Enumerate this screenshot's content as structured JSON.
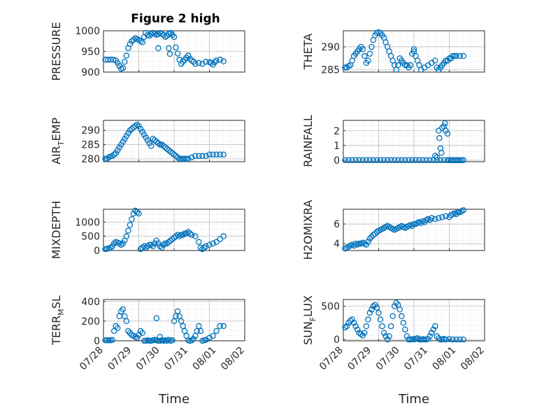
{
  "figure_title": "Figure 2 high",
  "colors": {
    "marker": "#0072BD",
    "axis": "#262626",
    "grid": "#d0d0d0"
  },
  "chart_data": [
    {
      "type": "scatter",
      "ylabel": "PRESSURE",
      "ylim": [
        900,
        1000
      ],
      "yticks": [
        900,
        950,
        1000
      ],
      "tick_labels": [
        "900",
        "950",
        "1000"
      ],
      "xlim": [
        0,
        4
      ],
      "xtick_labels": [],
      "x": [
        0.05,
        0.12,
        0.2,
        0.28,
        0.35,
        0.4,
        0.45,
        0.5,
        0.55,
        0.6,
        0.65,
        0.7,
        0.75,
        0.8,
        0.85,
        0.9,
        0.95,
        1.0,
        1.05,
        1.1,
        1.15,
        1.2,
        1.25,
        1.3,
        1.35,
        1.4,
        1.45,
        1.5,
        1.55,
        1.6,
        1.65,
        1.7,
        1.75,
        1.8,
        1.85,
        1.9,
        1.95,
        2.0,
        2.05,
        2.1,
        2.15,
        2.2,
        2.25,
        2.3,
        2.35,
        2.4,
        2.45,
        2.5,
        2.55,
        2.6,
        2.7,
        2.8,
        2.9,
        3.0,
        3.05,
        3.1,
        3.15,
        3.2,
        3.3,
        3.4,
        1.55,
        1.85,
        1.88,
        1.9
      ],
      "y": [
        930,
        930,
        930,
        930,
        928,
        922,
        915,
        908,
        910,
        925,
        940,
        958,
        968,
        975,
        978,
        982,
        980,
        978,
        975,
        972,
        985,
        995,
        990,
        988,
        992,
        995,
        993,
        990,
        992,
        995,
        993,
        990,
        985,
        988,
        993,
        995,
        990,
        985,
        960,
        945,
        930,
        920,
        925,
        930,
        935,
        940,
        932,
        928,
        925,
        920,
        922,
        920,
        925,
        924,
        922,
        918,
        924,
        928,
        930,
        926,
        958,
        958,
        944,
        994
      ]
    },
    {
      "type": "scatter",
      "ylabel": "THETA",
      "ylim": [
        284.5,
        293.5
      ],
      "yticks": [
        285,
        290
      ],
      "tick_labels": [
        "285",
        "290"
      ],
      "xlim": [
        0,
        4
      ],
      "xtick_labels": [],
      "x": [
        0.05,
        0.1,
        0.15,
        0.2,
        0.25,
        0.3,
        0.35,
        0.4,
        0.45,
        0.5,
        0.55,
        0.6,
        0.65,
        0.7,
        0.75,
        0.8,
        0.85,
        0.9,
        0.95,
        1.0,
        1.05,
        1.1,
        1.15,
        1.2,
        1.25,
        1.3,
        1.35,
        1.4,
        1.45,
        1.5,
        1.55,
        1.6,
        1.65,
        1.7,
        1.75,
        1.8,
        1.85,
        1.9,
        1.95,
        2.0,
        2.05,
        2.1,
        2.15,
        2.2,
        2.3,
        2.4,
        2.5,
        2.6,
        2.65,
        2.7,
        2.75,
        2.8,
        2.85,
        2.9,
        2.95,
        3.0,
        3.05,
        3.1,
        3.15,
        3.2,
        3.3,
        3.4,
        2.0
      ],
      "y": [
        285.5,
        285.5,
        285.8,
        286.0,
        287.0,
        288.0,
        288.5,
        289.0,
        289.5,
        290.0,
        289.5,
        288.0,
        286.5,
        287.0,
        288.5,
        290.0,
        291.5,
        292.5,
        293.0,
        293.2,
        293.0,
        292.5,
        292.0,
        291.0,
        290.0,
        289.0,
        288.0,
        287.0,
        286.0,
        285.0,
        286.0,
        287.5,
        287.0,
        286.5,
        286.0,
        286.0,
        285.5,
        286.0,
        288.5,
        289.0,
        288.0,
        287.0,
        286.0,
        285.0,
        285.5,
        286.0,
        286.5,
        287.0,
        285.5,
        285.0,
        285.5,
        286.0,
        286.5,
        287.0,
        287.0,
        287.5,
        287.5,
        288.0,
        288.0,
        288.0,
        288.0,
        288.0,
        289.5
      ]
    },
    {
      "type": "scatter",
      "ylabel": "AIR_TEMP",
      "ylim": [
        279,
        293.5
      ],
      "yticks": [
        280,
        285,
        290
      ],
      "tick_labels": [
        "280",
        "285",
        "290"
      ],
      "xlim": [
        0,
        4
      ],
      "xtick_labels": [],
      "x": [
        0.05,
        0.1,
        0.15,
        0.2,
        0.25,
        0.3,
        0.35,
        0.4,
        0.45,
        0.5,
        0.55,
        0.6,
        0.65,
        0.7,
        0.75,
        0.8,
        0.85,
        0.9,
        0.95,
        1.0,
        1.05,
        1.1,
        1.15,
        1.2,
        1.25,
        1.3,
        1.35,
        1.4,
        1.45,
        1.5,
        1.55,
        1.6,
        1.65,
        1.7,
        1.75,
        1.8,
        1.85,
        1.9,
        1.95,
        2.0,
        2.05,
        2.1,
        2.15,
        2.2,
        2.25,
        2.3,
        2.35,
        2.4,
        2.5,
        2.6,
        2.7,
        2.8,
        2.9,
        3.0,
        3.1,
        3.2,
        3.3,
        3.4
      ],
      "y": [
        280.0,
        280.0,
        280.5,
        280.8,
        281.0,
        281.5,
        282.0,
        283.0,
        284.0,
        285.0,
        286.0,
        287.0,
        288.0,
        289.0,
        290.0,
        290.5,
        291.0,
        291.5,
        292.0,
        291.5,
        290.5,
        289.5,
        288.5,
        287.5,
        286.5,
        285.5,
        284.5,
        287.0,
        286.5,
        286.0,
        285.5,
        285.0,
        285.0,
        284.5,
        284.0,
        283.5,
        283.0,
        282.5,
        282.0,
        281.5,
        281.0,
        280.5,
        280.0,
        280.0,
        280.0,
        280.0,
        280.0,
        280.0,
        280.5,
        281.0,
        281.0,
        281.0,
        281.0,
        281.5,
        281.5,
        281.5,
        281.5,
        281.5
      ]
    },
    {
      "type": "scatter",
      "ylabel": "RAINFALL",
      "ylim": [
        -0.1,
        2.7
      ],
      "yticks": [
        0,
        1,
        2
      ],
      "tick_labels": [
        "0",
        "1",
        "2"
      ],
      "xlim": [
        0,
        4
      ],
      "xtick_labels": [],
      "x": [
        0.05,
        0.15,
        0.25,
        0.35,
        0.45,
        0.55,
        0.65,
        0.75,
        0.85,
        0.95,
        1.05,
        1.15,
        1.25,
        1.35,
        1.45,
        1.55,
        1.65,
        1.75,
        1.85,
        1.95,
        2.05,
        2.15,
        2.25,
        2.35,
        2.45,
        2.55,
        2.65,
        2.75,
        2.85,
        2.95,
        3.0,
        3.05,
        3.1,
        3.15,
        3.2,
        3.25,
        3.3,
        3.35,
        3.4,
        2.6,
        2.65,
        2.7,
        2.72,
        2.75,
        2.78,
        2.8,
        2.85,
        2.88,
        2.9,
        2.95
      ],
      "y": [
        0,
        0,
        0,
        0,
        0,
        0,
        0,
        0,
        0,
        0,
        0,
        0,
        0,
        0,
        0,
        0,
        0,
        0,
        0,
        0,
        0,
        0,
        0,
        0,
        0,
        0,
        0,
        0,
        0,
        0,
        0,
        0,
        0,
        0,
        0,
        0,
        0,
        0,
        0,
        0.3,
        0.2,
        2.0,
        1.5,
        0.8,
        0.5,
        2.2,
        2.3,
        2.5,
        2.0,
        1.8
      ]
    },
    {
      "type": "scatter",
      "ylabel": "MIXDEPTH",
      "ylim": [
        0,
        1450
      ],
      "yticks": [
        0,
        500,
        1000
      ],
      "tick_labels": [
        "0",
        "500",
        "1000"
      ],
      "xlim": [
        0,
        4
      ],
      "xtick_labels": [],
      "x": [
        0.05,
        0.1,
        0.15,
        0.2,
        0.25,
        0.3,
        0.35,
        0.4,
        0.45,
        0.5,
        0.55,
        0.6,
        0.65,
        0.7,
        0.75,
        0.8,
        0.85,
        0.9,
        0.95,
        1.0,
        1.05,
        1.1,
        1.15,
        1.2,
        1.25,
        1.3,
        1.35,
        1.4,
        1.45,
        1.5,
        1.55,
        1.6,
        1.65,
        1.7,
        1.75,
        1.8,
        1.85,
        1.9,
        1.95,
        2.0,
        2.05,
        2.1,
        2.15,
        2.2,
        2.25,
        2.3,
        2.35,
        2.4,
        2.45,
        2.5,
        2.6,
        2.7,
        2.75,
        2.8,
        2.85,
        2.9,
        3.0,
        3.1,
        3.2,
        3.3,
        3.4
      ],
      "y": [
        50,
        60,
        80,
        100,
        150,
        250,
        300,
        280,
        250,
        200,
        250,
        350,
        500,
        700,
        900,
        1100,
        1300,
        1400,
        1350,
        1300,
        50,
        100,
        150,
        100,
        150,
        200,
        200,
        150,
        250,
        350,
        250,
        150,
        100,
        200,
        250,
        250,
        300,
        350,
        400,
        450,
        500,
        550,
        500,
        550,
        550,
        600,
        600,
        650,
        600,
        550,
        500,
        300,
        100,
        50,
        100,
        150,
        200,
        250,
        300,
        400,
        500
      ]
    },
    {
      "type": "scatter",
      "ylabel": "H2OMIXRA",
      "ylim": [
        3.3,
        7.5
      ],
      "yticks": [
        4,
        6
      ],
      "tick_labels": [
        "4",
        "6"
      ],
      "xlim": [
        0,
        4
      ],
      "xtick_labels": [],
      "x": [
        0.05,
        0.1,
        0.15,
        0.2,
        0.25,
        0.3,
        0.35,
        0.4,
        0.45,
        0.5,
        0.55,
        0.6,
        0.65,
        0.7,
        0.75,
        0.8,
        0.85,
        0.9,
        0.95,
        1.0,
        1.05,
        1.1,
        1.15,
        1.2,
        1.25,
        1.3,
        1.35,
        1.4,
        1.45,
        1.5,
        1.55,
        1.6,
        1.65,
        1.7,
        1.75,
        1.8,
        1.85,
        1.9,
        1.95,
        2.0,
        2.05,
        2.1,
        2.15,
        2.2,
        2.25,
        2.3,
        2.35,
        2.4,
        2.45,
        2.5,
        2.6,
        2.7,
        2.8,
        2.9,
        3.0,
        3.05,
        3.1,
        3.15,
        3.2,
        3.25,
        3.3,
        3.35,
        3.4
      ],
      "y": [
        3.5,
        3.6,
        3.7,
        3.8,
        3.9,
        3.8,
        4.0,
        3.9,
        4.0,
        4.0,
        4.1,
        4.0,
        3.9,
        4.2,
        4.5,
        4.7,
        4.9,
        5.0,
        5.2,
        5.3,
        5.4,
        5.5,
        5.6,
        5.7,
        5.8,
        5.7,
        5.6,
        5.5,
        5.4,
        5.5,
        5.6,
        5.7,
        5.8,
        5.7,
        5.6,
        5.7,
        5.8,
        5.9,
        5.8,
        6.0,
        6.0,
        6.1,
        6.2,
        6.1,
        6.3,
        6.2,
        6.4,
        6.5,
        6.4,
        6.6,
        6.5,
        6.6,
        6.7,
        6.8,
        6.7,
        6.9,
        7.0,
        7.1,
        7.0,
        7.2,
        7.2,
        7.3,
        7.4
      ]
    },
    {
      "type": "scatter",
      "ylabel": "TERR_MSL",
      "ylim": [
        0,
        420
      ],
      "yticks": [
        0,
        200,
        400
      ],
      "tick_labels": [
        "0",
        "200",
        "400"
      ],
      "xlim": [
        0,
        4
      ],
      "xtick_labels": [
        "07/28",
        "07/29",
        "07/30",
        "07/31",
        "08/01",
        "08/02"
      ],
      "x": [
        0.05,
        0.1,
        0.15,
        0.2,
        0.25,
        0.3,
        0.35,
        0.4,
        0.45,
        0.5,
        0.55,
        0.6,
        0.65,
        0.7,
        0.75,
        0.8,
        0.85,
        0.9,
        0.95,
        1.0,
        1.05,
        1.1,
        1.15,
        1.2,
        1.25,
        1.3,
        1.35,
        1.4,
        1.45,
        1.5,
        1.55,
        1.6,
        1.65,
        1.7,
        1.75,
        1.8,
        1.85,
        1.9,
        1.95,
        2.0,
        2.05,
        2.1,
        2.15,
        2.2,
        2.25,
        2.3,
        2.35,
        2.4,
        2.45,
        2.5,
        2.55,
        2.6,
        2.65,
        2.7,
        2.75,
        2.8,
        2.85,
        2.9,
        3.0,
        3.1,
        3.2,
        3.3,
        3.4,
        1.5,
        1.6
      ],
      "y": [
        5,
        5,
        5,
        5,
        10,
        100,
        150,
        130,
        250,
        300,
        320,
        250,
        200,
        100,
        80,
        60,
        50,
        40,
        30,
        60,
        100,
        80,
        0,
        0,
        5,
        0,
        0,
        5,
        10,
        5,
        0,
        0,
        5,
        0,
        5,
        0,
        10,
        0,
        5,
        200,
        250,
        300,
        250,
        200,
        150,
        100,
        50,
        5,
        0,
        5,
        20,
        50,
        100,
        150,
        100,
        0,
        5,
        10,
        30,
        50,
        100,
        150,
        150,
        230,
        40
      ]
    },
    {
      "type": "scatter",
      "ylabel": "SUN_FLUX",
      "ylim": [
        -20,
        600
      ],
      "yticks": [
        0,
        500
      ],
      "tick_labels": [
        "0",
        "500"
      ],
      "xlim": [
        0,
        4
      ],
      "xtick_labels": [
        "07/28",
        "07/29",
        "07/30",
        "07/31",
        "08/01",
        "08/02"
      ],
      "x": [
        0.05,
        0.1,
        0.15,
        0.2,
        0.25,
        0.3,
        0.35,
        0.4,
        0.45,
        0.5,
        0.55,
        0.6,
        0.65,
        0.7,
        0.75,
        0.8,
        0.85,
        0.9,
        0.95,
        1.0,
        1.05,
        1.1,
        1.15,
        1.2,
        1.25,
        1.3,
        1.35,
        1.4,
        1.45,
        1.5,
        1.55,
        1.6,
        1.65,
        1.7,
        1.75,
        1.8,
        1.85,
        1.9,
        1.95,
        2.0,
        2.05,
        2.1,
        2.15,
        2.2,
        2.25,
        2.3,
        2.35,
        2.4,
        2.45,
        2.5,
        2.55,
        2.6,
        2.65,
        2.7,
        2.75,
        2.8,
        2.85,
        2.9,
        3.0,
        3.1,
        3.2,
        3.3,
        3.4
      ],
      "y": [
        180,
        200,
        250,
        280,
        300,
        250,
        200,
        150,
        100,
        80,
        60,
        100,
        200,
        300,
        400,
        450,
        500,
        520,
        480,
        400,
        300,
        200,
        100,
        50,
        0,
        50,
        200,
        350,
        500,
        550,
        520,
        450,
        350,
        250,
        150,
        50,
        0,
        0,
        5,
        0,
        10,
        20,
        0,
        0,
        5,
        0,
        0,
        10,
        50,
        100,
        150,
        200,
        50,
        20,
        0,
        0,
        10,
        0,
        5,
        0,
        0,
        0,
        0
      ]
    }
  ]
}
